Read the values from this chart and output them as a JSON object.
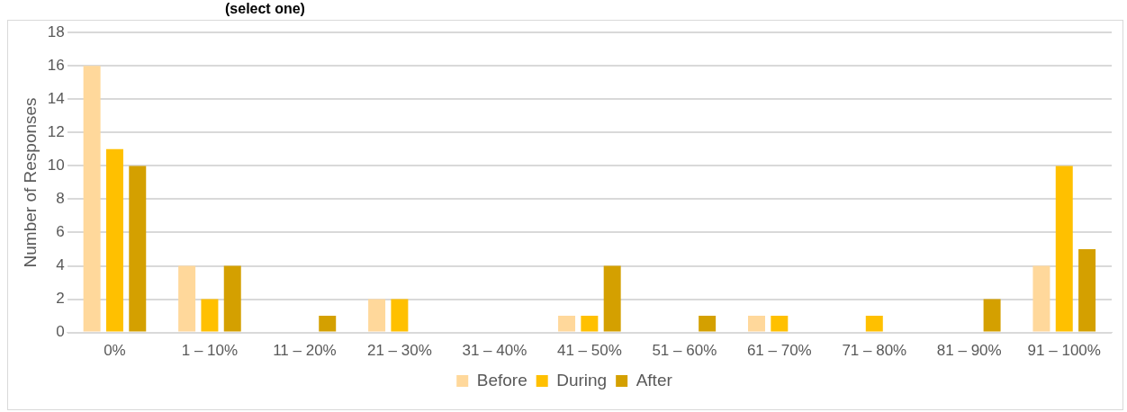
{
  "chart_data": {
    "type": "bar",
    "title": "(select one)",
    "ylabel": "Number of Responses",
    "categories": [
      "0%",
      "1 – 10%",
      "11 – 20%",
      "21 – 30%",
      "31 – 40%",
      "41 – 50%",
      "51 – 60%",
      "61 – 70%",
      "71 – 80%",
      "81 – 90%",
      "91 – 100%"
    ],
    "series": [
      {
        "name": "Before",
        "color": "#ffd89b",
        "values": [
          16,
          4,
          0,
          2,
          0,
          1,
          0,
          1,
          0,
          0,
          4
        ]
      },
      {
        "name": "During",
        "color": "#ffc000",
        "values": [
          11,
          2,
          0,
          2,
          0,
          1,
          0,
          1,
          1,
          0,
          10
        ]
      },
      {
        "name": "After",
        "color": "#d4a000",
        "values": [
          10,
          4,
          1,
          0,
          0,
          4,
          1,
          0,
          0,
          2,
          5
        ]
      }
    ],
    "ylim": [
      0,
      18
    ],
    "yticks": [
      0,
      2,
      4,
      6,
      8,
      10,
      12,
      14,
      16,
      18
    ],
    "grid": "y",
    "legend": "bottom"
  }
}
